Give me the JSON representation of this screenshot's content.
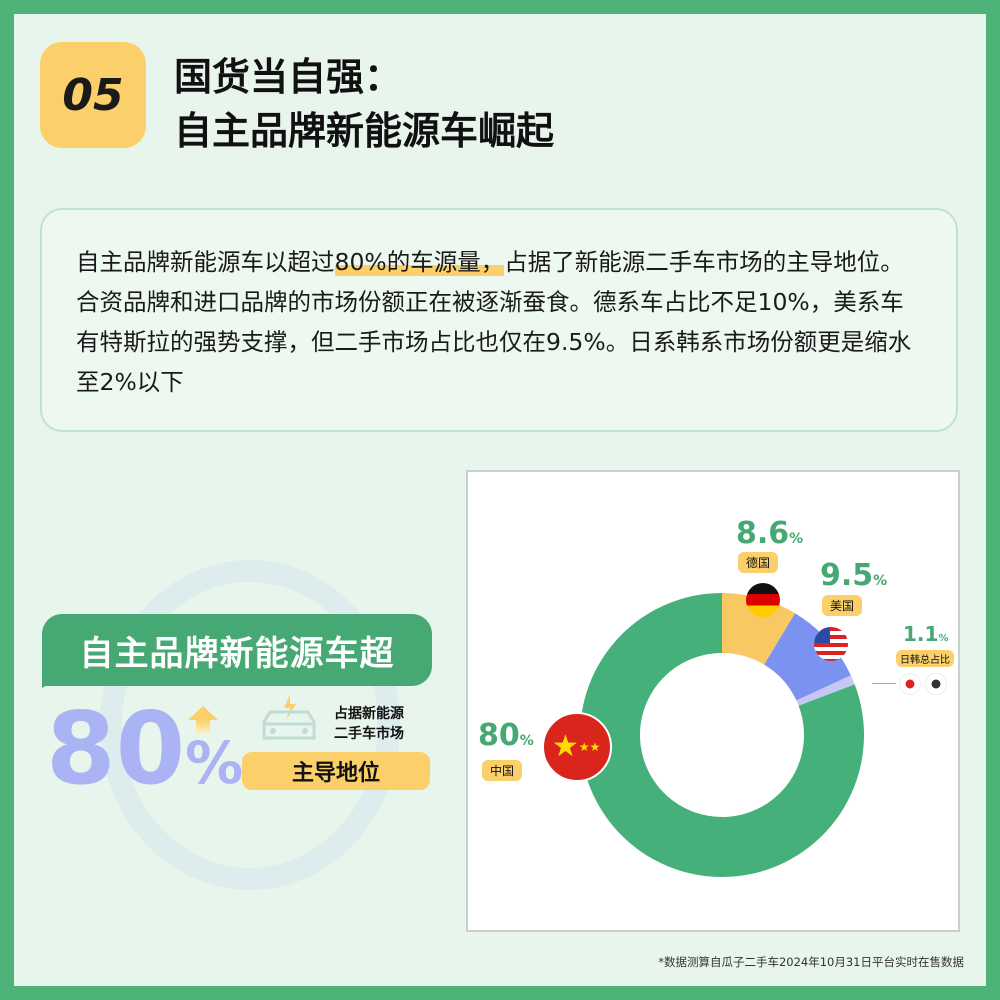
{
  "header": {
    "number": "05",
    "title_line1": "国货当自强：",
    "title_line2": "自主品牌新能源车崛起"
  },
  "description": {
    "part1": "自主品牌新能源车以超过",
    "highlight": "80%的车源量，",
    "part2": "占据了新能源二手车市场的主导地位。合资品牌和进口品牌的市场份额正在被逐渐蚕食。德系车占比不足10%，美系车有特斯拉的强势支撑，但二手市场占比也仅在9.5%。日系韩系市场份额更是缩水至2%以下"
  },
  "callout": {
    "bubble": "自主品牌新能源车超",
    "big_value": "80",
    "big_unit": "%",
    "occupy_line1": "占据新能源",
    "occupy_line2": "二手车市场",
    "dominant": "主导地位"
  },
  "colors": {
    "green": "#46a872",
    "yellow": "#fbd06a",
    "blue": "#7b92f0",
    "lilac": "#c6c8f4",
    "pink": "#f1b8c8",
    "big_text": "#aab4f4"
  },
  "chart_data": {
    "type": "pie",
    "donut": true,
    "slices": [
      {
        "label": "德国",
        "value": 8.6,
        "display": "8.6",
        "color": "#f8c862",
        "icon": "germany-flag-icon"
      },
      {
        "label": "美国",
        "value": 9.5,
        "display": "9.5",
        "color": "#7b92f0",
        "icon": "usa-flag-icon"
      },
      {
        "label": "日韩总占比",
        "value": 1.1,
        "display": "1.1",
        "color": "#c6c8f4",
        "icon": "japan-korea-flag-icon"
      },
      {
        "label": "中国",
        "value": 80,
        "display": "80",
        "color": "#46b07a",
        "icon": "china-flag-icon"
      }
    ],
    "unit": "%"
  },
  "footnote": "*数据测算自瓜子二手车2024年10月31日平台实时在售数据"
}
